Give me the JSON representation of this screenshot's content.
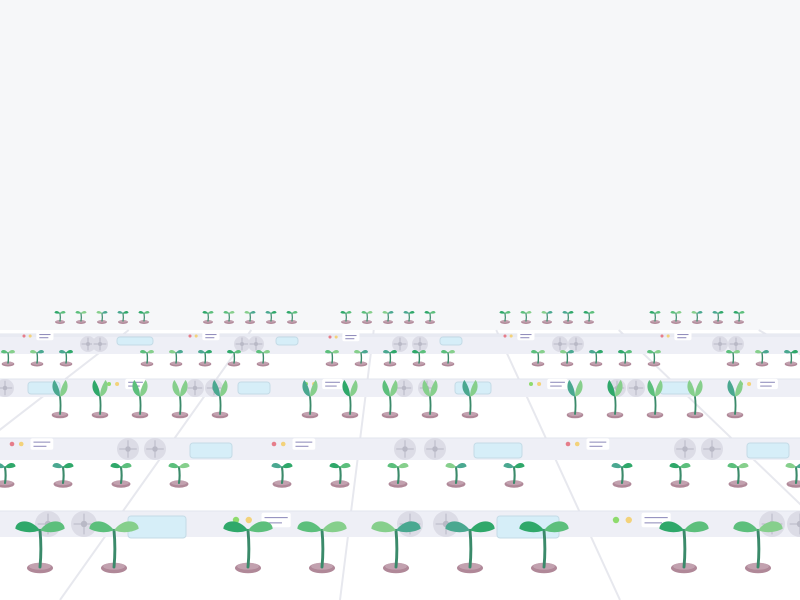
{
  "scene": {
    "kind": "vertical-farm-illustration",
    "background_color": "#f6f7f9",
    "floor_color": "#ffffff",
    "floor_line_color": "#e7e8ee",
    "shelf_strip_color": "#eeeff6",
    "shelf_edge_color": "#e2e4ee",
    "pot_color": "#b08898",
    "pot_rim_color": "#d9c2cc",
    "stem_color": "#3a8a6a",
    "leaf_colors": [
      "#2fa86a",
      "#5cbf7c",
      "#86cf8c",
      "#4aa890"
    ],
    "fan_color": "#dcdce6",
    "fan_hub_color": "#b9b9c6",
    "panel_color": "#d6eef8",
    "panel_border_color": "#c4dbe6",
    "indicator_colors": [
      "#e67d8a",
      "#f3d27a",
      "#8edb6d"
    ],
    "label_line_color": "#8a86b8",
    "label_bg_color": "#ffffff",
    "icons": [
      "sprout-icon",
      "fan-icon",
      "indicator-light-icon",
      "water-panel-icon",
      "label-tag-icon"
    ]
  }
}
